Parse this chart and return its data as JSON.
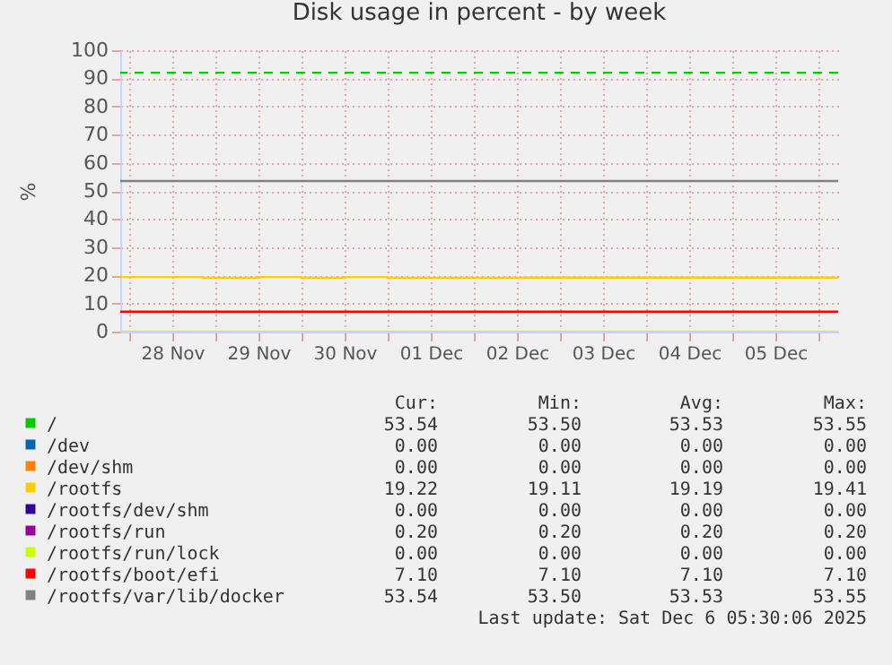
{
  "chart_data": {
    "type": "step",
    "title": "Disk usage in percent - by week",
    "ylabel": "%",
    "xlim": [
      "2025-11-27T21:30",
      "2025-12-06T05:30"
    ],
    "xticks": [
      {
        "value": "2025-11-28T00:00",
        "label": null
      },
      {
        "value": "2025-11-28T12:00",
        "label": "28 Nov"
      },
      {
        "value": "2025-11-29T00:00",
        "label": null
      },
      {
        "value": "2025-11-29T12:00",
        "label": "29 Nov"
      },
      {
        "value": "2025-11-30T00:00",
        "label": null
      },
      {
        "value": "2025-11-30T12:00",
        "label": "30 Nov"
      },
      {
        "value": "2025-12-01T00:00",
        "label": null
      },
      {
        "value": "2025-12-01T12:00",
        "label": "01 Dec"
      },
      {
        "value": "2025-12-02T00:00",
        "label": null
      },
      {
        "value": "2025-12-02T12:00",
        "label": "02 Dec"
      },
      {
        "value": "2025-12-03T00:00",
        "label": null
      },
      {
        "value": "2025-12-03T12:00",
        "label": "03 Dec"
      },
      {
        "value": "2025-12-04T00:00",
        "label": null
      },
      {
        "value": "2025-12-04T12:00",
        "label": "04 Dec"
      },
      {
        "value": "2025-12-05T00:00",
        "label": null
      },
      {
        "value": "2025-12-05T12:00",
        "label": "05 Dec"
      },
      {
        "value": "2025-12-06T00:00",
        "label": null
      }
    ],
    "ylim": [
      0,
      100
    ],
    "yticks": [
      0,
      10,
      20,
      30,
      40,
      50,
      60,
      70,
      80,
      90,
      100
    ],
    "grid": true,
    "legend": "bottom",
    "marker": "none",
    "line_style": "solid",
    "series": [
      {
        "name": "/",
        "color": "#00cc00",
        "values": [
          null,
          null
        ]
      },
      {
        "name": "/dev",
        "color": "#0066b3",
        "values": [
          null,
          null
        ]
      },
      {
        "name": "/dev/shm",
        "color": "#ff8000",
        "values": [
          null,
          null
        ]
      },
      {
        "name": "/rootfs",
        "color": "#ffcc00",
        "x": [
          "2025-11-27T21:30",
          "2025-11-28T20:30",
          "2025-11-29T11:45",
          "2025-11-30T00:00",
          "2025-11-30T12:00",
          "2025-12-01T00:00",
          "2025-12-02T14:00",
          "2025-12-06T05:30"
        ],
        "values": [
          19.4,
          19.1,
          19.4,
          19.1,
          19.4,
          19.1,
          19.2,
          19.2
        ]
      },
      {
        "name": "/rootfs/dev/shm",
        "color": "#330099",
        "values": [
          null,
          null
        ]
      },
      {
        "name": "/rootfs/run",
        "color": "#990099",
        "values": [
          null,
          null
        ]
      },
      {
        "name": "/rootfs/run/lock",
        "color": "#ccff00",
        "x": [
          "2025-11-27T21:30",
          "2025-12-06T05:30"
        ],
        "values": [
          0,
          0
        ]
      },
      {
        "name": "/rootfs/boot/efi",
        "color": "#ff0000",
        "x": [
          "2025-11-27T21:30",
          "2025-12-06T05:30"
        ],
        "values": [
          7.1,
          7.1
        ]
      },
      {
        "name": "/rootfs/var/lib/docker",
        "color": "#808080",
        "x": [
          "2025-11-27T21:30",
          "2025-12-06T05:30"
        ],
        "values": [
          53.5,
          53.5
        ]
      }
    ],
    "ref_lines": [
      {
        "axis": "y",
        "value": 92,
        "color": "#00cc00",
        "line_style": "dashed"
      }
    ],
    "annotations": [
      "Cur:",
      "Min:",
      "Avg:",
      "Max:",
      "53.54",
      "53.50",
      "53.53",
      "53.55",
      "0.00",
      "0.00",
      "0.00",
      "0.00",
      "0.00",
      "0.00",
      "0.00",
      "0.00",
      "19.22",
      "19.11",
      "19.19",
      "19.41",
      "0.00",
      "0.00",
      "0.00",
      "0.00",
      "0.20",
      "0.20",
      "0.20",
      "0.20",
      "0.00",
      "0.00",
      "0.00",
      "0.00",
      "7.10",
      "7.10",
      "7.10",
      "7.10",
      "53.54",
      "53.50",
      "53.53",
      "53.55",
      "Last update: Sat Dec  6 05:30:06 2025"
    ]
  }
}
